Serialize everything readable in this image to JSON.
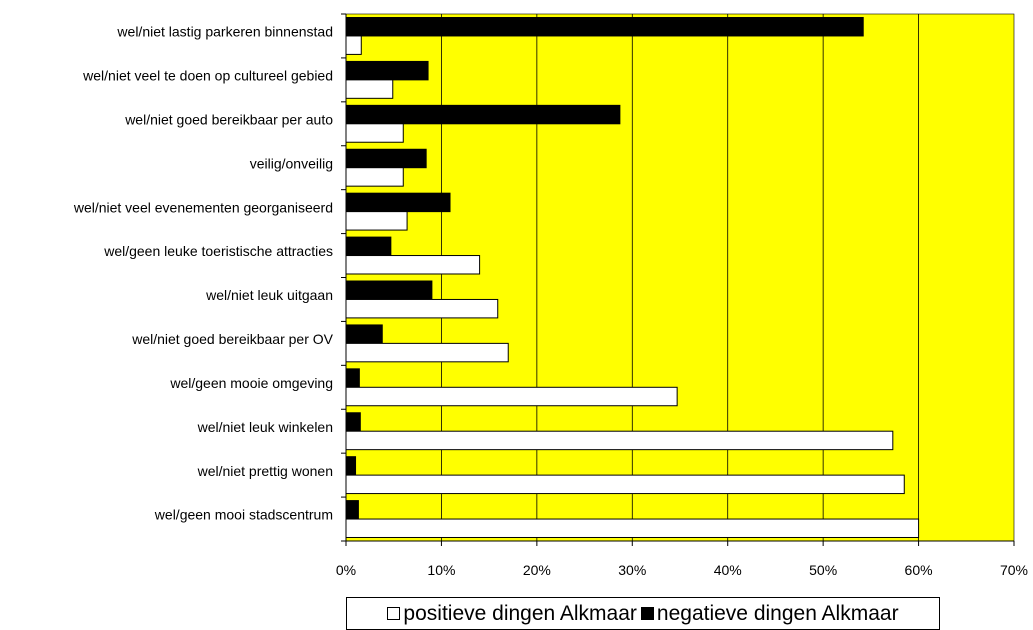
{
  "chart_data": {
    "type": "bar",
    "orientation": "horizontal",
    "categories": [
      "wel/niet lastig parkeren binnenstad",
      "wel/niet veel te doen op cultureel gebied",
      "wel/niet goed bereikbaar per auto",
      "veilig/onveilig",
      "wel/niet veel evenementen georganiseerd",
      "wel/geen leuke toeristische attracties",
      "wel/niet leuk uitgaan",
      "wel/niet goed bereikbaar per OV",
      "wel/geen mooie omgeving",
      "wel/niet leuk winkelen",
      "wel/niet prettig wonen",
      "wel/geen mooi stadscentrum"
    ],
    "series": [
      {
        "name": "positieve dingen Alkmaar",
        "color": "#ffffff",
        "values": [
          1.6,
          4.9,
          6.0,
          6.0,
          6.4,
          14.0,
          15.9,
          17.0,
          34.7,
          57.3,
          58.5,
          60.0
        ]
      },
      {
        "name": "negatieve dingen Alkmaar",
        "color": "#000000",
        "values": [
          54.2,
          8.6,
          28.7,
          8.4,
          10.9,
          4.7,
          9.0,
          3.8,
          1.4,
          1.5,
          1.0,
          1.3
        ]
      }
    ],
    "xticks": [
      "0%",
      "10%",
      "20%",
      "30%",
      "40%",
      "50%",
      "60%",
      "70%"
    ],
    "xlim": [
      0,
      70
    ],
    "xlabel": "",
    "ylabel": "",
    "title": "",
    "grid": "vertical",
    "plot_background": "#ffff00",
    "legend_position": "bottom"
  }
}
